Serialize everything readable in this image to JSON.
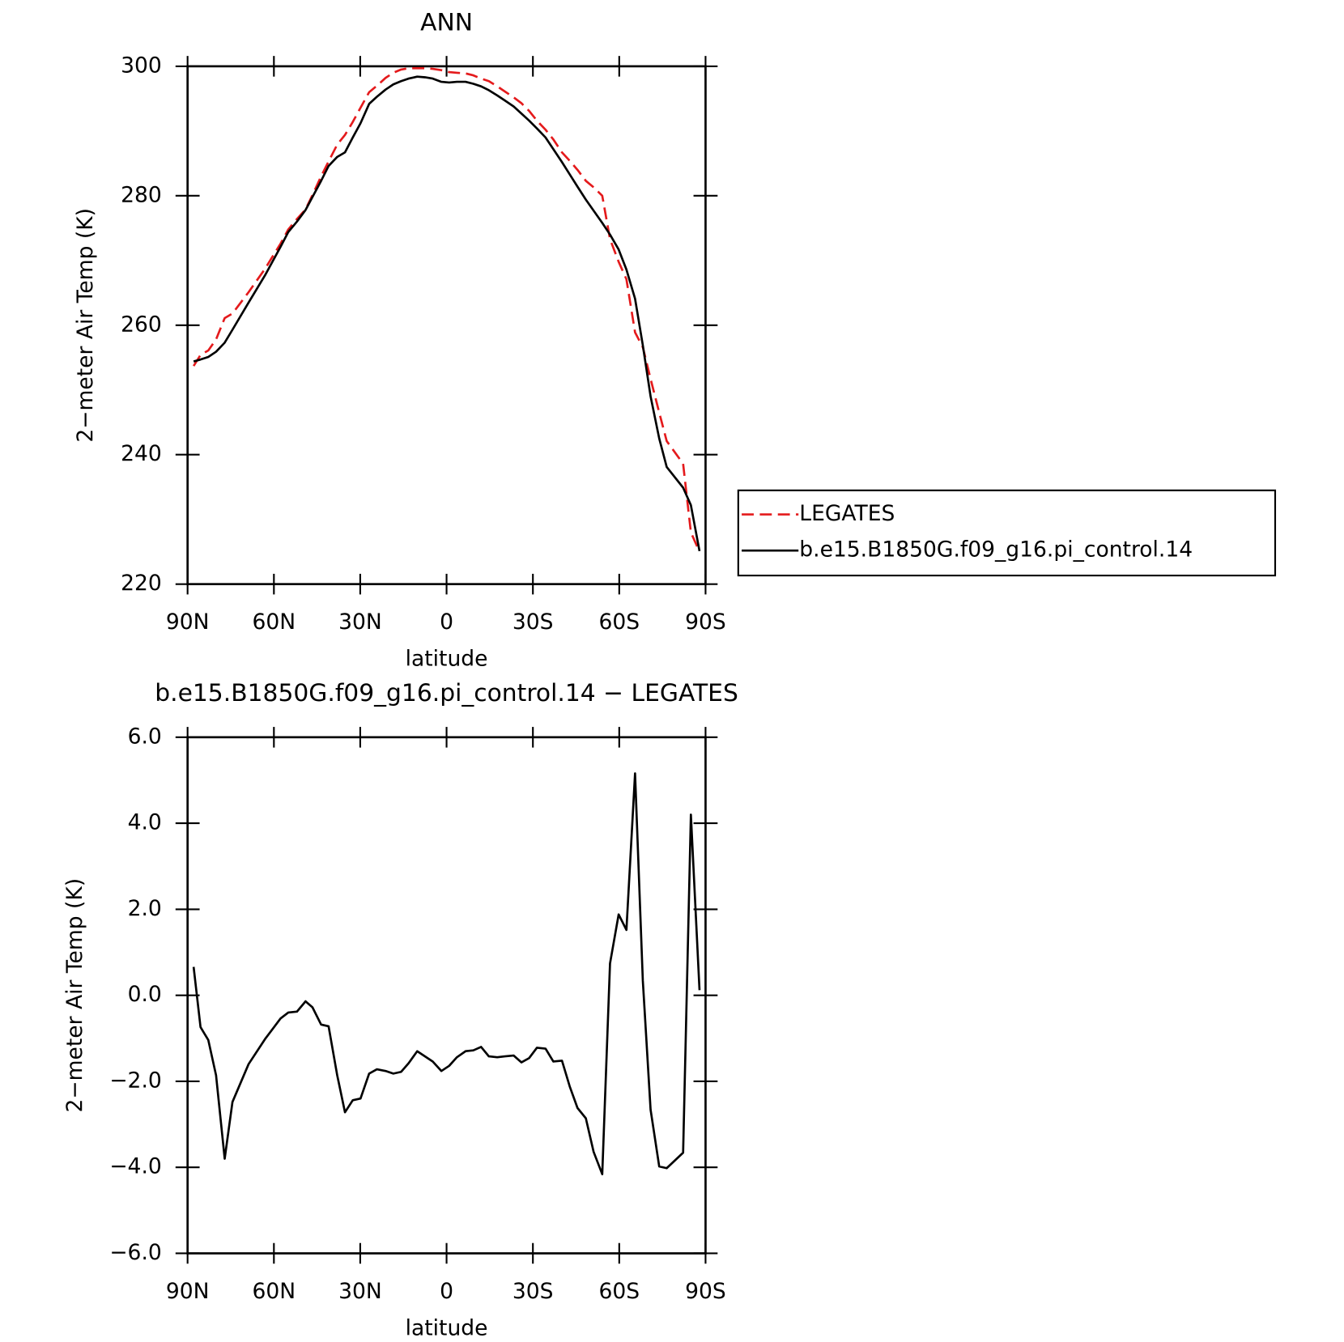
{
  "chart_data": [
    {
      "type": "line",
      "title": "ANN",
      "xlabel": "latitude",
      "ylabel": "2−meter Air Temp (K)",
      "x": [
        87.9,
        85.5,
        82.8,
        80.1,
        77.1,
        74.4,
        68.8,
        63.1,
        57.7,
        55.0,
        52.0,
        49.0,
        46.6,
        43.6,
        41.0,
        38.0,
        35.3,
        32.6,
        29.9,
        26.9,
        24.2,
        21.2,
        18.5,
        15.8,
        13.2,
        10.2,
        7.5,
        4.8,
        1.8,
        -0.9,
        -3.6,
        -6.6,
        -9.3,
        -12.0,
        -14.7,
        -17.6,
        -20.3,
        -23.3,
        -26.0,
        -28.7,
        -31.4,
        -34.4,
        -37.1,
        -40.1,
        -42.8,
        -45.5,
        -48.4,
        -51.1,
        -54.1,
        -56.8,
        -59.8,
        -62.5,
        -65.5,
        -68.2,
        -70.9,
        -73.9,
        -76.5,
        -82.2,
        -84.9,
        -87.9
      ],
      "series": [
        {
          "name": "LEGATES",
          "color": "#e41a1c",
          "style": "dashed",
          "values": [
            253.7,
            255.4,
            256.1,
            257.8,
            261.1,
            261.8,
            265.1,
            268.7,
            272.6,
            274.8,
            276.4,
            277.9,
            280.1,
            283.0,
            285.3,
            287.9,
            289.4,
            291.4,
            293.6,
            296.0,
            297.0,
            298.2,
            299.0,
            299.5,
            299.7,
            299.7,
            299.7,
            299.6,
            299.4,
            299.1,
            299.0,
            298.9,
            298.6,
            298.1,
            297.7,
            296.9,
            296.1,
            295.2,
            294.3,
            293.1,
            291.6,
            290.2,
            288.7,
            286.7,
            285.4,
            284.0,
            282.3,
            281.3,
            280.0,
            273.3,
            269.8,
            267.1,
            258.9,
            256.6,
            251.7,
            246.5,
            242.1,
            238.6,
            228.0,
            225.0
          ]
        },
        {
          "name": "b.e15.B1850G.f09_g16.pi_control.14",
          "color": "#000000",
          "style": "solid",
          "values": [
            254.4,
            254.7,
            255.1,
            255.9,
            257.3,
            259.3,
            263.5,
            267.7,
            272.1,
            274.4,
            276.0,
            277.8,
            279.8,
            282.3,
            284.6,
            286.0,
            286.7,
            289.0,
            291.2,
            294.2,
            295.3,
            296.4,
            297.2,
            297.7,
            298.1,
            298.4,
            298.3,
            298.1,
            297.6,
            297.5,
            297.6,
            297.6,
            297.3,
            296.9,
            296.3,
            295.5,
            294.7,
            293.8,
            292.7,
            291.6,
            290.4,
            289.0,
            287.2,
            285.2,
            283.3,
            281.4,
            279.4,
            277.7,
            275.8,
            274.0,
            271.7,
            268.6,
            264.1,
            256.9,
            249.0,
            242.5,
            238.1,
            234.9,
            232.2,
            225.1
          ]
        }
      ],
      "xlim": [
        90,
        -90
      ],
      "xticks": [
        {
          "value": 90,
          "label": "90N"
        },
        {
          "value": 60,
          "label": "60N"
        },
        {
          "value": 30,
          "label": "30N"
        },
        0,
        {
          "value": -30,
          "label": "30S"
        },
        {
          "value": -60,
          "label": "60S"
        },
        {
          "value": -90,
          "label": "90S"
        }
      ],
      "ylim": [
        220,
        300
      ],
      "yticks": [
        220,
        240,
        260,
        280,
        300
      ],
      "legend": "right"
    },
    {
      "type": "line",
      "title": "b.e15.B1850G.f09_g16.pi_control.14 − LEGATES",
      "xlabel": "latitude",
      "ylabel": "2−meter Air Temp (K)",
      "x": [
        87.9,
        85.5,
        82.8,
        80.1,
        77.1,
        74.4,
        68.8,
        63.1,
        57.7,
        55.0,
        52.0,
        49.0,
        46.6,
        43.6,
        41.0,
        38.0,
        35.3,
        32.6,
        29.9,
        26.9,
        24.2,
        21.2,
        18.5,
        15.8,
        13.2,
        10.2,
        7.5,
        4.8,
        1.8,
        -0.9,
        -3.6,
        -6.6,
        -9.3,
        -12.0,
        -14.7,
        -17.6,
        -20.3,
        -23.3,
        -26.0,
        -28.7,
        -31.4,
        -34.4,
        -37.1,
        -40.1,
        -42.8,
        -45.5,
        -48.4,
        -51.1,
        -54.1,
        -56.8,
        -59.8,
        -62.5,
        -65.5,
        -68.2,
        -70.9,
        -73.9,
        -76.5,
        -82.2,
        -84.9,
        -87.9
      ],
      "values": [
        0.66,
        -0.74,
        -1.04,
        -1.86,
        -3.8,
        -2.48,
        -1.6,
        -1.02,
        -0.54,
        -0.4,
        -0.38,
        -0.14,
        -0.28,
        -0.68,
        -0.72,
        -1.86,
        -2.72,
        -2.44,
        -2.4,
        -1.82,
        -1.72,
        -1.76,
        -1.82,
        -1.78,
        -1.58,
        -1.3,
        -1.42,
        -1.54,
        -1.76,
        -1.64,
        -1.44,
        -1.3,
        -1.28,
        -1.2,
        -1.42,
        -1.44,
        -1.42,
        -1.4,
        -1.56,
        -1.46,
        -1.22,
        -1.24,
        -1.54,
        -1.52,
        -2.12,
        -2.62,
        -2.86,
        -3.64,
        -4.16,
        0.74,
        1.88,
        1.52,
        5.16,
        0.34,
        -2.66,
        -3.98,
        -4.02,
        -3.66,
        4.2,
        0.12
      ],
      "color": "#000000",
      "xlim": [
        90,
        -90
      ],
      "xticks": [
        {
          "value": 90,
          "label": "90N"
        },
        {
          "value": 60,
          "label": "60N"
        },
        {
          "value": 30,
          "label": "30N"
        },
        0,
        {
          "value": -30,
          "label": "30S"
        },
        {
          "value": -60,
          "label": "60S"
        },
        {
          "value": -90,
          "label": "90S"
        }
      ],
      "ylim": [
        -6,
        6
      ],
      "yticks": [
        {
          "value": -6,
          "label": "−6.0"
        },
        {
          "value": -4,
          "label": "−4.0"
        },
        {
          "value": -2,
          "label": "−2.0"
        },
        {
          "value": 0,
          "label": "0.0"
        },
        {
          "value": 2,
          "label": "2.0"
        },
        {
          "value": 4,
          "label": "4.0"
        },
        {
          "value": 6,
          "label": "6.0"
        }
      ]
    }
  ]
}
